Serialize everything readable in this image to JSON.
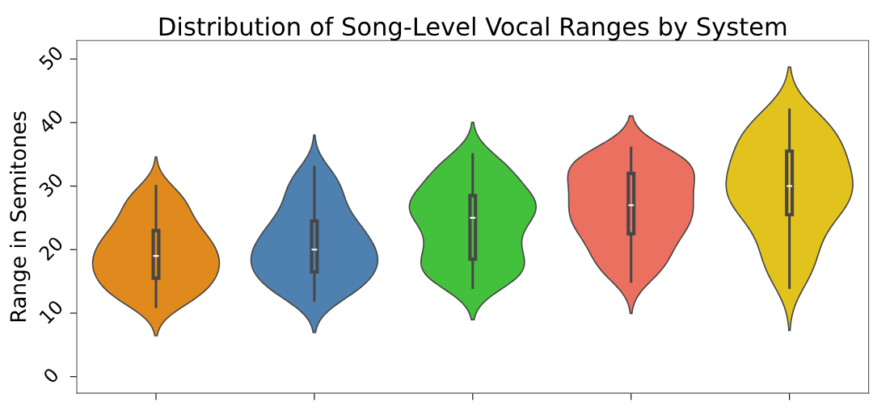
{
  "chart_data": {
    "type": "box",
    "title": "Distribution of Song-Level Vocal Ranges by System",
    "ylabel": "Range in Semitones",
    "categories": [
      null,
      null,
      null,
      null,
      null
    ],
    "colors": [
      "#e08a1e",
      "#4e81b0",
      "#44c13c",
      "#ec7060",
      "#e2c31e"
    ],
    "boxes": [
      {
        "low": 11,
        "q1": 15.5,
        "median": 19,
        "q3": 23,
        "high": 30
      },
      {
        "low": 12,
        "q1": 16.5,
        "median": 20,
        "q3": 24.5,
        "high": 33
      },
      {
        "low": 14,
        "q1": 18.5,
        "median": 25,
        "q3": 28.5,
        "high": 35
      },
      {
        "low": 15,
        "q1": 22.5,
        "median": 27,
        "q3": 32,
        "high": 36
      },
      {
        "low": 14,
        "q1": 25.5,
        "median": 30,
        "q3": 35.5,
        "high": 42
      }
    ],
    "ylim": [
      -2.6,
      52.9
    ],
    "yticks": [
      0,
      10,
      20,
      30,
      40,
      50
    ],
    "grid": false,
    "legend": false
  }
}
